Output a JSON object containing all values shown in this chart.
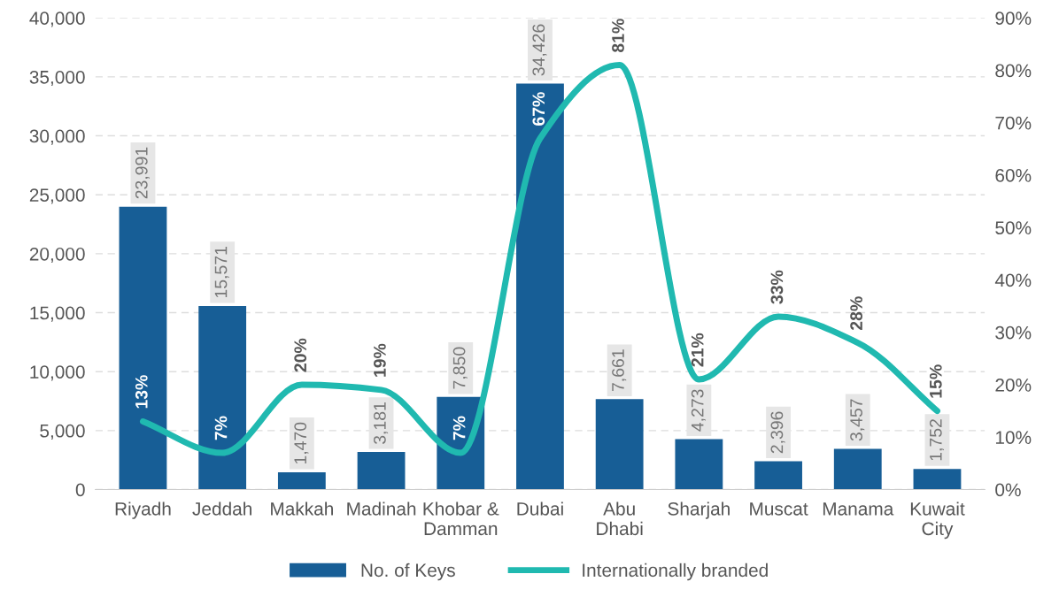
{
  "chart_data": {
    "type": "bar",
    "categories": [
      "Riyadh",
      "Jeddah",
      "Makkah",
      "Madinah",
      "Khobar & Damman",
      "Dubai",
      "Abu Dhabi",
      "Sharjah",
      "Muscat",
      "Manama",
      "Kuwait City"
    ],
    "series": [
      {
        "name": "No. of Keys",
        "axis": "y",
        "color": "#175e96",
        "values": [
          23991,
          15571,
          1470,
          3181,
          7850,
          34426,
          7661,
          4273,
          2396,
          3457,
          1752
        ],
        "value_labels": [
          "23,991",
          "15,571",
          "1,470",
          "3,181",
          "7,850",
          "34,426",
          "7,661",
          "4,273",
          "2,396",
          "3,457",
          "1,752"
        ]
      },
      {
        "name": "Internationally branded",
        "type": "line",
        "axis": "y2",
        "color": "#20b9b0",
        "values": [
          13,
          7,
          20,
          19,
          7,
          67,
          81,
          21,
          33,
          28,
          15
        ],
        "value_labels": [
          "13%",
          "7%",
          "20%",
          "19%",
          "7%",
          "67%",
          "81%",
          "21%",
          "33%",
          "28%",
          "15%"
        ]
      }
    ],
    "data_labels": true,
    "ylim": [
      0,
      40000
    ],
    "yticks": [
      0,
      {
        "value": 5000,
        "label": "5,000"
      },
      {
        "value": 10000,
        "label": "10,000"
      },
      {
        "value": 15000,
        "label": "15,000"
      },
      {
        "value": 20000,
        "label": "20,000"
      },
      {
        "value": 25000,
        "label": "25,000"
      },
      {
        "value": 30000,
        "label": "30,000"
      },
      {
        "value": 35000,
        "label": "35,000"
      },
      {
        "value": 40000,
        "label": "40,000"
      }
    ],
    "y2lim": [
      0,
      90
    ],
    "y2ticks": [
      {
        "value": 0,
        "label": "0%"
      },
      {
        "value": 10,
        "label": "10%"
      },
      {
        "value": 20,
        "label": "20%"
      },
      {
        "value": 30,
        "label": "30%"
      },
      {
        "value": 40,
        "label": "40%"
      },
      {
        "value": 50,
        "label": "50%"
      },
      {
        "value": 60,
        "label": "60%"
      },
      {
        "value": 70,
        "label": "70%"
      },
      {
        "value": 80,
        "label": "80%"
      },
      {
        "value": 90,
        "label": "90%"
      }
    ],
    "grid": "y",
    "legend": "bottom",
    "line_style": "solid",
    "marker": "none"
  }
}
